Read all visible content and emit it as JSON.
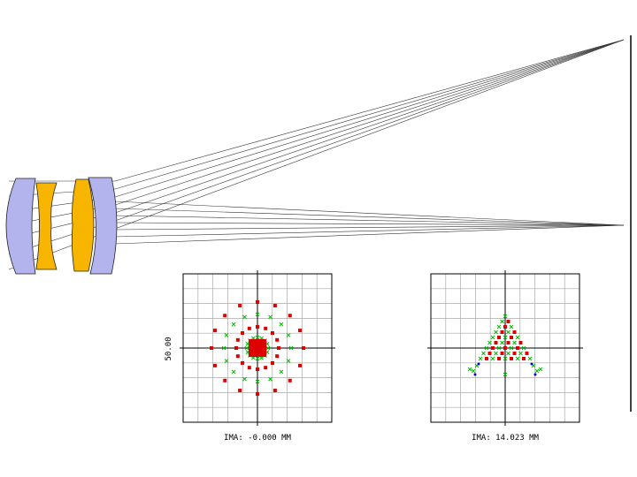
{
  "spot_diagrams": [
    {
      "scale_label": "50.00",
      "field_label": "IMA: -0.000 MM"
    },
    {
      "field_label": "IMA: 14.023 MM"
    }
  ]
}
